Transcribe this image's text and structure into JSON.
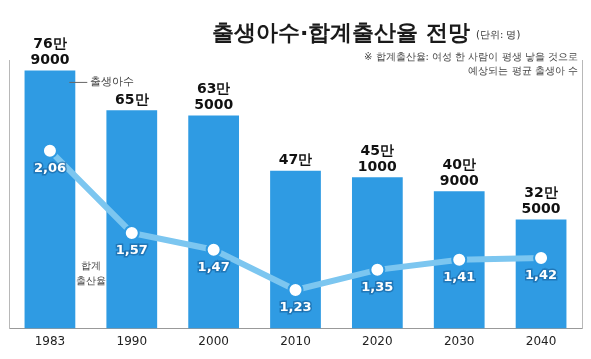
{
  "chart_data": {
    "type": "bar",
    "title": "출생아수·합계출산율 전망",
    "subtitle": "(단위: 명)",
    "annotations": [
      "※ 합계출산율: 여성 한 사람이 평생 낳을 것으로\n예상되는 평균 출생아 수"
    ],
    "categories": [
      "1983",
      "1990",
      "2000",
      "2010",
      "2020",
      "2030",
      "2040"
    ],
    "series": [
      {
        "name": "출생아수",
        "type": "bar",
        "color": "#2f9be3",
        "values": [
          769000,
          650000,
          635000,
          470000,
          451000,
          409000,
          325000
        ],
        "value_labels": [
          "76만 9000",
          "65만",
          "63만 5000",
          "47만",
          "45만 1000",
          "40만 9000",
          "32만 5000"
        ]
      },
      {
        "name": "합계 출산율",
        "type": "line",
        "axis": "y2",
        "color": "#7cc6f0",
        "marker": "circle",
        "values": [
          2.06,
          1.57,
          1.47,
          1.23,
          1.35,
          1.41,
          1.42
        ],
        "value_labels": [
          "2,06",
          "1,57",
          "1,47",
          "1,23",
          "1,35",
          "1,41",
          "1,42"
        ]
      }
    ],
    "ylim": [
      0,
      800000
    ],
    "yticks": [],
    "y2lim": [
      1.0,
      2.6
    ],
    "y2ticks": [],
    "grid": false,
    "data_labels": true,
    "tick_labels": "x"
  }
}
